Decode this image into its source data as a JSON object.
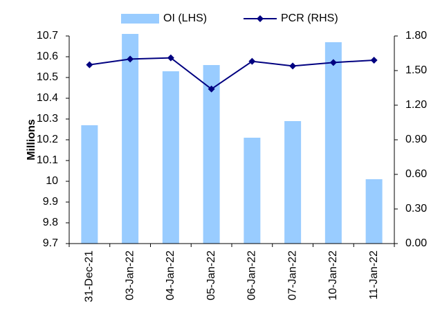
{
  "chart_data": {
    "type": "bar_line",
    "y_label": "Millions",
    "categories": [
      "31-Dec-21",
      "03-Jan-22",
      "04-Jan-22",
      "05-Jan-22",
      "06-Jan-22",
      "07-Jan-22",
      "10-Jan-22",
      "11-Jan-22"
    ],
    "series": [
      {
        "name": "OI (LHS)",
        "type": "bar",
        "color": "#99ccff",
        "values": [
          10.27,
          10.71,
          10.53,
          10.56,
          10.21,
          10.29,
          10.67,
          10.01
        ]
      },
      {
        "name": "PCR (RHS)",
        "type": "line",
        "axis": "y2",
        "color": "#000080",
        "values": [
          1.55,
          1.6,
          1.61,
          1.34,
          1.58,
          1.54,
          1.57,
          1.59
        ]
      }
    ],
    "ylim": [
      9.7,
      10.7
    ],
    "yticks": [
      9.7,
      9.8,
      9.9,
      10,
      10.1,
      10.2,
      10.3,
      10.4,
      10.5,
      10.6,
      10.7
    ],
    "y2lim": [
      0,
      1.8
    ],
    "y2ticks": [
      {
        "value": 0,
        "label": "0.00"
      },
      {
        "value": 0.3,
        "label": "0.30"
      },
      {
        "value": 0.6,
        "label": "0.60"
      },
      {
        "value": 0.9,
        "label": "0.90"
      },
      {
        "value": 1.2,
        "label": "1.20"
      },
      {
        "value": 1.5,
        "label": "1.50"
      },
      {
        "value": 1.8,
        "label": "1.80"
      }
    ],
    "legend": "top"
  }
}
